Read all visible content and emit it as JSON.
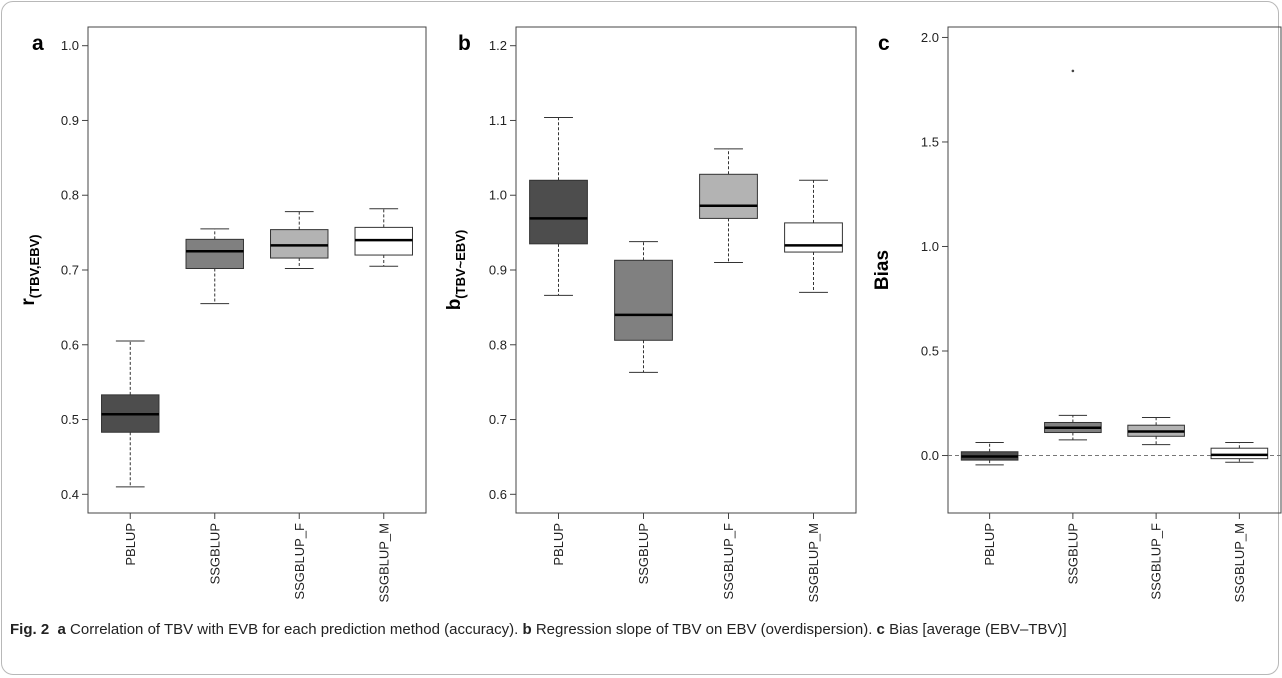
{
  "caption": {
    "fig_label": "Fig. 2",
    "a_letter": "a",
    "a_text": "Correlation of TBV with EVB for each prediction method (accuracy).",
    "b_letter": "b",
    "b_text": "Regression slope of TBV on EBV (overdispersion).",
    "c_letter": "c",
    "c_text": "Bias [average (EBV–TBV)]"
  },
  "colors": {
    "PBLUP": "#4d4d4d",
    "SSGBLUP": "#808080",
    "SSGBLUP_F": "#b3b3b3",
    "SSGBLUP_M": "#ffffff"
  },
  "chart_data": [
    {
      "type": "boxplot",
      "panel": "a",
      "ylabel_main": "r",
      "ylabel_sub": "(TBV,EBV)",
      "xlabel": "",
      "ylim": [
        0.375,
        1.025
      ],
      "yticks": [
        "0.4",
        "0.5",
        "0.6",
        "0.7",
        "0.8",
        "0.9",
        "1.0"
      ],
      "categories": [
        "PBLUP",
        "SSGBLUP",
        "SSGBLUP_F",
        "SSGBLUP_M"
      ],
      "boxes": [
        {
          "min": 0.41,
          "q1": 0.483,
          "median": 0.507,
          "q3": 0.533,
          "max": 0.605,
          "outliers": []
        },
        {
          "min": 0.655,
          "q1": 0.702,
          "median": 0.725,
          "q3": 0.741,
          "max": 0.755,
          "outliers": []
        },
        {
          "min": 0.702,
          "q1": 0.716,
          "median": 0.733,
          "q3": 0.754,
          "max": 0.778,
          "outliers": []
        },
        {
          "min": 0.705,
          "q1": 0.72,
          "median": 0.74,
          "q3": 0.757,
          "max": 0.782,
          "outliers": []
        }
      ]
    },
    {
      "type": "boxplot",
      "panel": "b",
      "ylabel_main": "b",
      "ylabel_sub": "(TBV~EBV)",
      "xlabel": "",
      "ylim": [
        0.575,
        1.225
      ],
      "yticks": [
        "0.6",
        "0.7",
        "0.8",
        "0.9",
        "1.0",
        "1.1",
        "1.2"
      ],
      "categories": [
        "PBLUP",
        "SSGBLUP",
        "SSGBLUP_F",
        "SSGBLUP_M"
      ],
      "boxes": [
        {
          "min": 0.866,
          "q1": 0.935,
          "median": 0.969,
          "q3": 1.02,
          "max": 1.104,
          "outliers": []
        },
        {
          "min": 0.763,
          "q1": 0.806,
          "median": 0.84,
          "q3": 0.913,
          "max": 0.938,
          "outliers": []
        },
        {
          "min": 0.91,
          "q1": 0.969,
          "median": 0.986,
          "q3": 1.028,
          "max": 1.062,
          "outliers": []
        },
        {
          "min": 0.87,
          "q1": 0.924,
          "median": 0.933,
          "q3": 0.963,
          "max": 1.02,
          "outliers": []
        }
      ]
    },
    {
      "type": "boxplot",
      "panel": "c",
      "ylabel_main": "Bias",
      "ylabel_sub": "",
      "xlabel": "",
      "ylim": [
        -0.275,
        2.05
      ],
      "yticks": [
        "0.0",
        "0.5",
        "1.0",
        "1.5",
        "2.0"
      ],
      "reference_line": 0,
      "categories": [
        "PBLUP",
        "SSGBLUP",
        "SSGBLUP_F",
        "SSGBLUP_M"
      ],
      "boxes": [
        {
          "min": -0.045,
          "q1": -0.022,
          "median": -0.005,
          "q3": 0.018,
          "max": 0.062,
          "outliers": []
        },
        {
          "min": 0.075,
          "q1": 0.11,
          "median": 0.133,
          "q3": 0.158,
          "max": 0.192,
          "outliers": [
            1.84
          ]
        },
        {
          "min": 0.052,
          "q1": 0.092,
          "median": 0.115,
          "q3": 0.145,
          "max": 0.182,
          "outliers": []
        },
        {
          "min": -0.032,
          "q1": -0.015,
          "median": 0.003,
          "q3": 0.035,
          "max": 0.062,
          "outliers": []
        }
      ]
    }
  ]
}
